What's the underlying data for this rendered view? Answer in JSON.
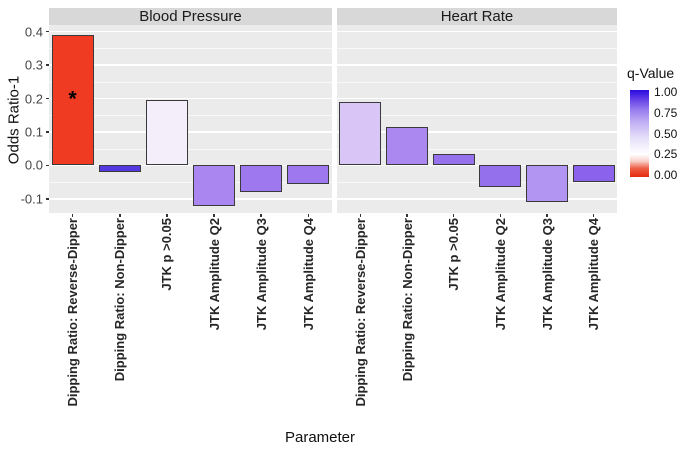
{
  "figure": {
    "ylabel": "Odds Ratio-1",
    "xlabel": "Parameter"
  },
  "chart_data": {
    "type": "bar",
    "title": "",
    "xlabel": "Parameter",
    "ylabel": "Odds Ratio-1",
    "ylim": [
      -0.142,
      0.42
    ],
    "yticks": [
      "0.4",
      "0.3",
      "0.2",
      "0.1",
      "0.0",
      "-0.1"
    ],
    "ytick_values": [
      0.4,
      0.3,
      0.2,
      0.1,
      0.0,
      -0.1
    ],
    "grid": "white major and minor gridlines on gray panel",
    "panel_bg": "#ebebeb",
    "strip_bg": "#d8d8d8",
    "bar_stroke": "#3a3a3a",
    "categories": [
      "Dipping Ratio: Reverse-Dipper",
      "Dipping Ratio: Non-Dipper",
      "JTK p >0.05",
      "JTK Amplitude Q2",
      "JTK Amplitude Q3",
      "JTK Amplitude Q4"
    ],
    "facets": [
      {
        "label": "Blood Pressure",
        "bars": [
          {
            "category": "Dipping Ratio: Reverse-Dipper",
            "value": 0.39,
            "color": "#ee3b22",
            "annotation": "*"
          },
          {
            "category": "Dipping Ratio: Non-Dipper",
            "value": -0.02,
            "color": "#5638e2"
          },
          {
            "category": "JTK p >0.05",
            "value": 0.195,
            "color": "#f4eefa"
          },
          {
            "category": "JTK Amplitude Q2",
            "value": -0.12,
            "color": "#aa86f0"
          },
          {
            "category": "JTK Amplitude Q3",
            "value": -0.08,
            "color": "#9d78ef"
          },
          {
            "category": "JTK Amplitude Q4",
            "value": -0.055,
            "color": "#9d78ef"
          }
        ]
      },
      {
        "label": "Heart Rate",
        "bars": [
          {
            "category": "Dipping Ratio: Reverse-Dipper",
            "value": 0.19,
            "color": "#d9c5f6"
          },
          {
            "category": "Dipping Ratio: Non-Dipper",
            "value": 0.115,
            "color": "#ab88f0"
          },
          {
            "category": "JTK p >0.05",
            "value": 0.035,
            "color": "#9571ee"
          },
          {
            "category": "JTK Amplitude Q2",
            "value": -0.065,
            "color": "#9470ed"
          },
          {
            "category": "JTK Amplitude Q3",
            "value": -0.11,
            "color": "#b294f2"
          },
          {
            "category": "JTK Amplitude Q4",
            "value": -0.05,
            "color": "#8b62ec"
          }
        ]
      }
    ],
    "legend": {
      "title": "q-Value",
      "position": "right",
      "tick_labels": [
        "1.00",
        "0.75",
        "0.50",
        "0.25",
        "0.00"
      ],
      "range": [
        0.0,
        1.0
      ],
      "gradient_stops": [
        {
          "pos": 0.0,
          "color": "#e62a0e"
        },
        {
          "pos": 0.1,
          "color": "#ee5e45"
        },
        {
          "pos": 0.18,
          "color": "#f8cec6"
        },
        {
          "pos": 0.26,
          "color": "#ffffff"
        },
        {
          "pos": 0.45,
          "color": "#e6dff9"
        },
        {
          "pos": 0.62,
          "color": "#c3b2f4"
        },
        {
          "pos": 0.78,
          "color": "#9579ee"
        },
        {
          "pos": 0.9,
          "color": "#5f3be7"
        },
        {
          "pos": 1.0,
          "color": "#2b0be0"
        }
      ]
    }
  }
}
